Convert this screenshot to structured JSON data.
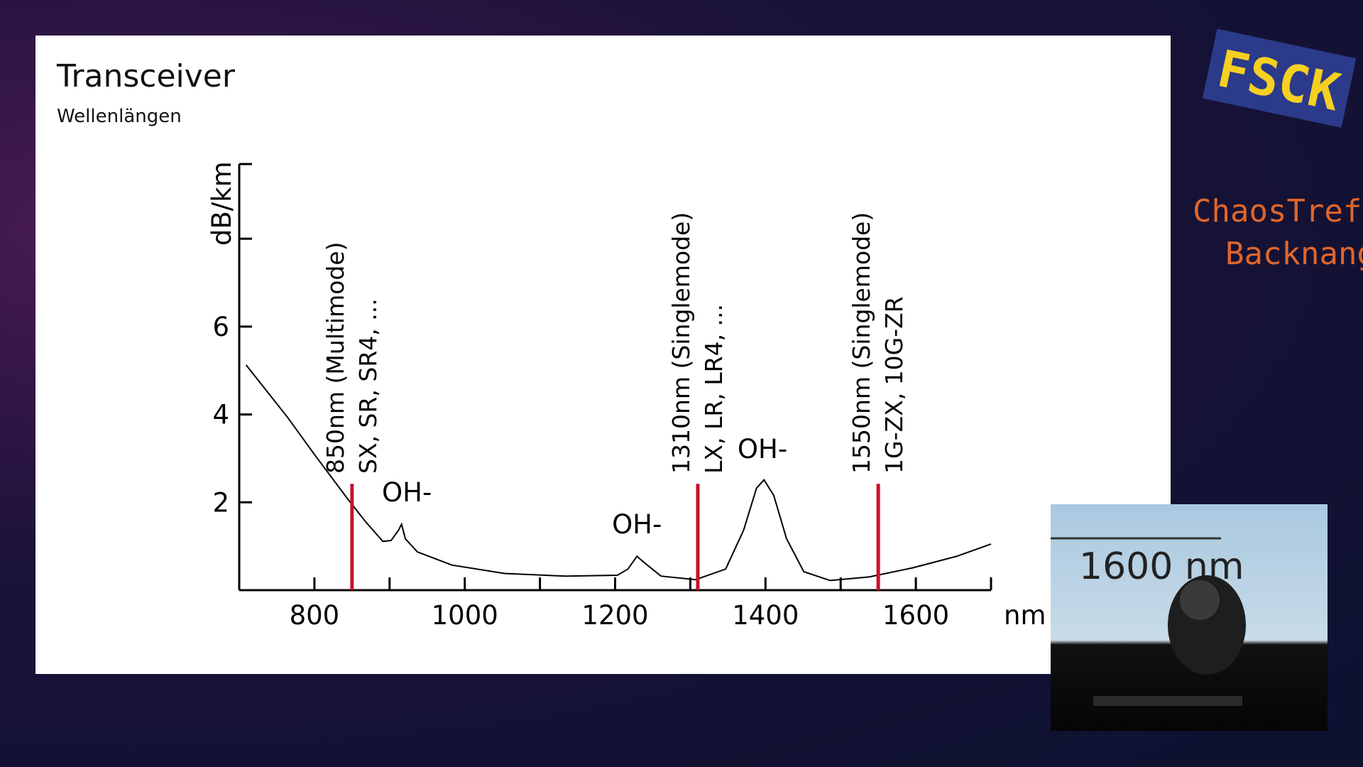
{
  "slide": {
    "title": "Transceiver",
    "subtitle": "Wellenlängen"
  },
  "logos": {
    "event": "FSCK",
    "org_line1": "ChaosTreff",
    "org_line2": "Backnang"
  },
  "camera": {
    "screen_text": "1600 nm"
  },
  "chart_data": {
    "type": "line",
    "ylabel": "dB/km",
    "xunit": "nm",
    "color": "#000000",
    "x": [
      709,
      764,
      800,
      845,
      868,
      891,
      902,
      912,
      916,
      921,
      937,
      983,
      1053,
      1134,
      1203,
      1217,
      1229,
      1240,
      1261,
      1307,
      1347,
      1371,
      1388,
      1398,
      1411,
      1428,
      1451,
      1486,
      1538,
      1596,
      1654,
      1700
    ],
    "values": [
      5.13,
      3.94,
      3.09,
      2.06,
      1.56,
      1.11,
      1.13,
      1.37,
      1.5,
      1.17,
      0.87,
      0.57,
      0.38,
      0.32,
      0.34,
      0.48,
      0.77,
      0.61,
      0.32,
      0.24,
      0.48,
      1.37,
      2.32,
      2.51,
      2.16,
      1.17,
      0.42,
      0.22,
      0.3,
      0.51,
      0.77,
      1.05
    ],
    "xlim": [
      700,
      1700
    ],
    "xticks": [
      800,
      1000,
      1200,
      1400,
      1600
    ],
    "xminor_ticks": [
      700,
      900,
      1100,
      1300,
      1500,
      1700
    ],
    "ylim": [
      0,
      9.7
    ],
    "yticks": [
      2,
      4,
      6
    ],
    "yminor_ticks": [
      8
    ],
    "marker_color": "#c8102e",
    "markers": [
      {
        "x": 850,
        "height": 2.42,
        "labels": [
          "850nm (Multimode)",
          "SX, SR, SR4, ..."
        ]
      },
      {
        "x": 1310,
        "height": 2.42,
        "labels": [
          "1310nm (Singlemode)",
          "LX, LR, LR4, ..."
        ]
      },
      {
        "x": 1550,
        "height": 2.42,
        "labels": [
          "1550nm (Singlemode)",
          "1G-ZX, 10G-ZR"
        ]
      }
    ],
    "annotations": [
      {
        "text": "OH-",
        "x": 923,
        "y": 2.02
      },
      {
        "text": "OH-",
        "x": 1229,
        "y": 1.29
      },
      {
        "text": "OH-",
        "x": 1396,
        "y": 3.01
      }
    ]
  }
}
